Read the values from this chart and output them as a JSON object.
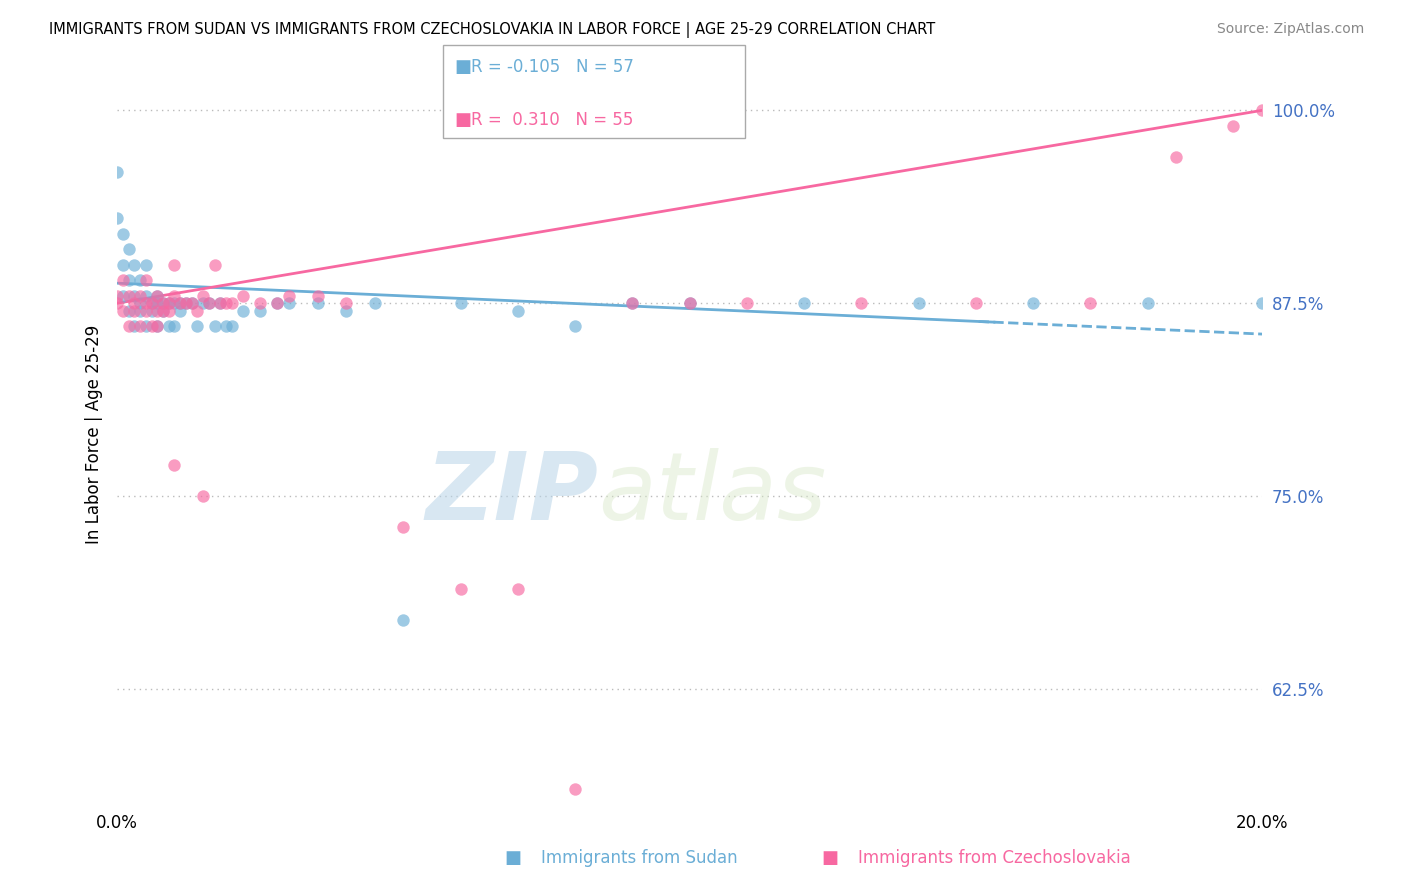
{
  "title": "IMMIGRANTS FROM SUDAN VS IMMIGRANTS FROM CZECHOSLOVAKIA IN LABOR FORCE | AGE 25-29 CORRELATION CHART",
  "source": "Source: ZipAtlas.com",
  "xlabel_sudan": "Immigrants from Sudan",
  "xlabel_czech": "Immigrants from Czechoslovakia",
  "ylabel": "In Labor Force | Age 25-29",
  "xlim": [
    0.0,
    0.2
  ],
  "ylim": [
    0.55,
    1.03
  ],
  "yticks": [
    0.625,
    0.75,
    0.875,
    1.0
  ],
  "ytick_labels": [
    "62.5%",
    "75.0%",
    "87.5%",
    "100.0%"
  ],
  "sudan_R": -0.105,
  "sudan_N": 57,
  "czech_R": 0.31,
  "czech_N": 55,
  "sudan_color": "#6baed6",
  "czech_color": "#f768a1",
  "background_color": "#ffffff",
  "sudan_scatter_x": [
    0.0,
    0.0,
    0.001,
    0.001,
    0.001,
    0.002,
    0.002,
    0.002,
    0.003,
    0.003,
    0.003,
    0.004,
    0.004,
    0.004,
    0.005,
    0.005,
    0.005,
    0.006,
    0.006,
    0.007,
    0.007,
    0.007,
    0.008,
    0.008,
    0.009,
    0.009,
    0.01,
    0.01,
    0.011,
    0.011,
    0.012,
    0.013,
    0.014,
    0.015,
    0.016,
    0.017,
    0.018,
    0.019,
    0.02,
    0.022,
    0.025,
    0.028,
    0.03,
    0.035,
    0.04,
    0.045,
    0.05,
    0.06,
    0.07,
    0.08,
    0.09,
    0.1,
    0.12,
    0.14,
    0.16,
    0.18,
    0.2
  ],
  "sudan_scatter_y": [
    0.93,
    0.96,
    0.88,
    0.9,
    0.92,
    0.87,
    0.89,
    0.91,
    0.86,
    0.88,
    0.9,
    0.87,
    0.89,
    0.875,
    0.86,
    0.88,
    0.9,
    0.87,
    0.875,
    0.86,
    0.88,
    0.875,
    0.87,
    0.875,
    0.86,
    0.875,
    0.875,
    0.86,
    0.87,
    0.875,
    0.875,
    0.875,
    0.86,
    0.875,
    0.875,
    0.86,
    0.875,
    0.86,
    0.86,
    0.87,
    0.87,
    0.875,
    0.875,
    0.875,
    0.87,
    0.875,
    0.67,
    0.875,
    0.87,
    0.86,
    0.875,
    0.875,
    0.875,
    0.875,
    0.875,
    0.875,
    0.875
  ],
  "czech_scatter_x": [
    0.0,
    0.0,
    0.001,
    0.001,
    0.002,
    0.002,
    0.003,
    0.003,
    0.004,
    0.004,
    0.005,
    0.005,
    0.005,
    0.006,
    0.006,
    0.007,
    0.007,
    0.007,
    0.008,
    0.008,
    0.009,
    0.009,
    0.01,
    0.01,
    0.011,
    0.012,
    0.013,
    0.014,
    0.015,
    0.016,
    0.017,
    0.018,
    0.019,
    0.02,
    0.022,
    0.025,
    0.028,
    0.03,
    0.035,
    0.04,
    0.05,
    0.06,
    0.07,
    0.08,
    0.09,
    0.1,
    0.11,
    0.13,
    0.15,
    0.17,
    0.185,
    0.195,
    0.2,
    0.015,
    0.01
  ],
  "czech_scatter_y": [
    0.875,
    0.88,
    0.87,
    0.89,
    0.86,
    0.88,
    0.87,
    0.875,
    0.86,
    0.88,
    0.875,
    0.87,
    0.89,
    0.86,
    0.875,
    0.87,
    0.88,
    0.86,
    0.87,
    0.875,
    0.87,
    0.875,
    0.88,
    0.9,
    0.875,
    0.875,
    0.875,
    0.87,
    0.88,
    0.875,
    0.9,
    0.875,
    0.875,
    0.875,
    0.88,
    0.875,
    0.875,
    0.88,
    0.88,
    0.875,
    0.73,
    0.69,
    0.69,
    0.56,
    0.875,
    0.875,
    0.875,
    0.875,
    0.875,
    0.875,
    0.97,
    0.99,
    1.0,
    0.75,
    0.77
  ]
}
